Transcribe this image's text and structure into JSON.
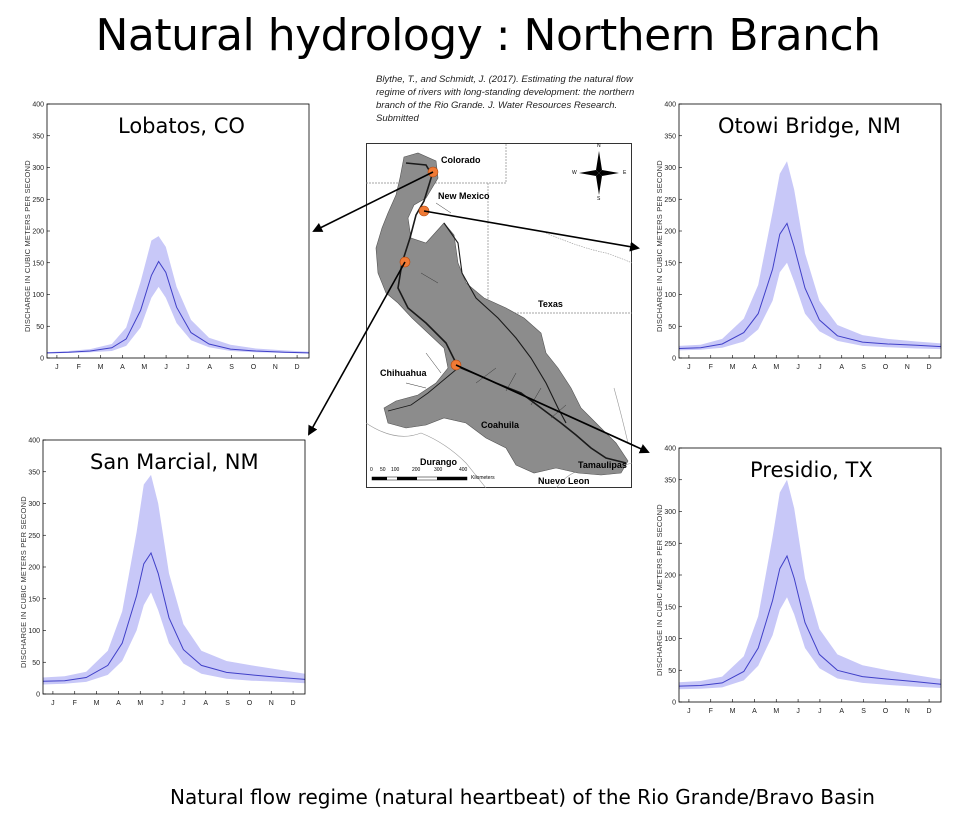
{
  "page_title": "Natural hydrology : Northern Branch",
  "citation": "Blythe, T., and Schmidt, J.  (2017). Estimating the natural flow regime of rivers with long-standing development: the northern branch of the Rio Grande. J. Water Resources Research. Submitted",
  "caption": "Natural flow regime (natural heartbeat) of the Rio Grande/Bravo Basin",
  "map": {
    "labels": {
      "colorado": "Colorado",
      "new_mexico": "New Mexico",
      "texas": "Texas",
      "chihuahua": "Chihuahua",
      "coahuila": "Coahuila",
      "durango": "Durango",
      "nuevo_leon": "Nuevo Leon",
      "tamaulipas": "Tamaulipas"
    },
    "compass": {
      "n": "N",
      "s": "S",
      "e": "E",
      "w": "W"
    },
    "scale_ticks": [
      "0",
      "50",
      "100",
      "200",
      "300",
      "400"
    ],
    "scale_unit": "Kilometers",
    "colors": {
      "basin": "#8c8c8c",
      "river": "#1a1a1a",
      "gauge": "#f07a35"
    }
  },
  "chart_data": [
    {
      "type": "area",
      "title": "Lobatos, CO",
      "ylabel": "DISCHARGE IN CUBIC METERS PER SECOND",
      "ylim": [
        0,
        400
      ],
      "yticks": [
        "0",
        "50",
        "100",
        "150",
        "200",
        "250",
        "300",
        "350",
        "400"
      ],
      "months": [
        "J",
        "F",
        "M",
        "A",
        "M",
        "J",
        "J",
        "A",
        "S",
        "O",
        "N",
        "D"
      ],
      "series": [
        {
          "role": "median",
          "x": [
            1,
            31,
            61,
            91,
            111,
            131,
            146,
            156,
            166,
            181,
            201,
            226,
            256,
            291,
            331,
            365
          ],
          "values": [
            8,
            9,
            11,
            16,
            30,
            75,
            130,
            152,
            135,
            80,
            40,
            22,
            14,
            11,
            9,
            8
          ]
        },
        {
          "role": "upper",
          "x": [
            1,
            31,
            61,
            91,
            111,
            131,
            146,
            156,
            166,
            181,
            201,
            226,
            256,
            291,
            331,
            365
          ],
          "values": [
            9,
            11,
            14,
            22,
            48,
            120,
            185,
            192,
            175,
            112,
            60,
            32,
            21,
            15,
            12,
            10
          ]
        },
        {
          "role": "lower",
          "x": [
            1,
            31,
            61,
            91,
            111,
            131,
            146,
            156,
            166,
            181,
            201,
            226,
            256,
            291,
            331,
            365
          ],
          "values": [
            7,
            8,
            9,
            11,
            19,
            48,
            95,
            112,
            95,
            55,
            28,
            17,
            11,
            9,
            8,
            7
          ]
        }
      ],
      "colors": {
        "line": "#4040c8",
        "band": "#c8c8f8"
      }
    },
    {
      "type": "area",
      "title": "Otowi Bridge, NM",
      "ylabel": "DISCHARGE IN CUBIC METERS PER SECOND",
      "ylim": [
        0,
        400
      ],
      "yticks": [
        "0",
        "50",
        "100",
        "150",
        "200",
        "250",
        "300",
        "350",
        "400"
      ],
      "months": [
        "J",
        "F",
        "M",
        "A",
        "M",
        "J",
        "J",
        "A",
        "S",
        "O",
        "N",
        "D"
      ],
      "series": [
        {
          "role": "median",
          "x": [
            1,
            31,
            61,
            91,
            111,
            131,
            141,
            151,
            161,
            176,
            196,
            221,
            256,
            291,
            331,
            365
          ],
          "values": [
            15,
            16,
            22,
            40,
            70,
            140,
            195,
            212,
            175,
            110,
            60,
            35,
            25,
            22,
            20,
            18
          ]
        },
        {
          "role": "upper",
          "x": [
            1,
            31,
            61,
            91,
            111,
            131,
            141,
            151,
            161,
            176,
            196,
            221,
            256,
            291,
            331,
            365
          ],
          "values": [
            19,
            21,
            30,
            62,
            115,
            230,
            290,
            310,
            265,
            165,
            90,
            52,
            36,
            30,
            26,
            23
          ]
        },
        {
          "role": "lower",
          "x": [
            1,
            31,
            61,
            91,
            111,
            131,
            141,
            151,
            161,
            176,
            196,
            221,
            256,
            291,
            331,
            365
          ],
          "values": [
            12,
            13,
            16,
            26,
            45,
            90,
            135,
            150,
            120,
            70,
            42,
            27,
            19,
            17,
            15,
            14
          ]
        }
      ],
      "colors": {
        "line": "#4040c8",
        "band": "#c8c8f8"
      }
    },
    {
      "type": "area",
      "title": "San Marcial, NM",
      "ylabel": "DISCHARGE IN CUBIC METERS PER SECOND",
      "ylim": [
        0,
        400
      ],
      "yticks": [
        "0",
        "50",
        "100",
        "150",
        "200",
        "250",
        "300",
        "350",
        "400"
      ],
      "months": [
        "J",
        "F",
        "M",
        "A",
        "M",
        "J",
        "J",
        "A",
        "S",
        "O",
        "N",
        "D"
      ],
      "series": [
        {
          "role": "median",
          "x": [
            1,
            31,
            61,
            91,
            111,
            131,
            141,
            151,
            161,
            176,
            196,
            221,
            256,
            291,
            331,
            365
          ],
          "values": [
            20,
            21,
            26,
            45,
            80,
            155,
            205,
            222,
            190,
            120,
            70,
            45,
            34,
            30,
            26,
            23
          ]
        },
        {
          "role": "upper",
          "x": [
            1,
            31,
            61,
            91,
            111,
            131,
            141,
            151,
            161,
            176,
            196,
            221,
            256,
            291,
            331,
            365
          ],
          "values": [
            26,
            28,
            35,
            68,
            130,
            255,
            330,
            345,
            300,
            190,
            110,
            68,
            52,
            45,
            38,
            32
          ]
        },
        {
          "role": "lower",
          "x": [
            1,
            31,
            61,
            91,
            111,
            131,
            141,
            151,
            161,
            176,
            196,
            221,
            256,
            291,
            331,
            365
          ],
          "values": [
            15,
            16,
            19,
            30,
            52,
            100,
            140,
            160,
            132,
            80,
            48,
            32,
            24,
            21,
            19,
            17
          ]
        }
      ],
      "colors": {
        "line": "#4040c8",
        "band": "#c8c8f8"
      }
    },
    {
      "type": "area",
      "title": "Presidio, TX",
      "ylabel": "DISCHARGE IN CUBIC METERS PER SECOND",
      "ylim": [
        0,
        400
      ],
      "yticks": [
        "0",
        "50",
        "100",
        "150",
        "200",
        "250",
        "300",
        "350",
        "400"
      ],
      "months": [
        "J",
        "F",
        "M",
        "A",
        "M",
        "J",
        "J",
        "A",
        "S",
        "O",
        "N",
        "D"
      ],
      "series": [
        {
          "role": "median",
          "x": [
            1,
            31,
            61,
            91,
            111,
            131,
            141,
            151,
            161,
            176,
            196,
            221,
            256,
            291,
            331,
            365
          ],
          "values": [
            25,
            26,
            30,
            48,
            85,
            160,
            210,
            230,
            195,
            125,
            75,
            50,
            40,
            36,
            32,
            28
          ]
        },
        {
          "role": "upper",
          "x": [
            1,
            31,
            61,
            91,
            111,
            131,
            141,
            151,
            161,
            176,
            196,
            221,
            256,
            291,
            331,
            365
          ],
          "values": [
            31,
            33,
            40,
            72,
            135,
            260,
            330,
            350,
            305,
            195,
            115,
            75,
            58,
            50,
            42,
            36
          ]
        },
        {
          "role": "lower",
          "x": [
            1,
            31,
            61,
            91,
            111,
            131,
            141,
            151,
            161,
            176,
            196,
            221,
            256,
            291,
            331,
            365
          ],
          "values": [
            20,
            21,
            23,
            34,
            57,
            105,
            145,
            165,
            138,
            85,
            53,
            37,
            30,
            27,
            24,
            22
          ]
        }
      ],
      "colors": {
        "line": "#4040c8",
        "band": "#c8c8f8"
      }
    }
  ]
}
